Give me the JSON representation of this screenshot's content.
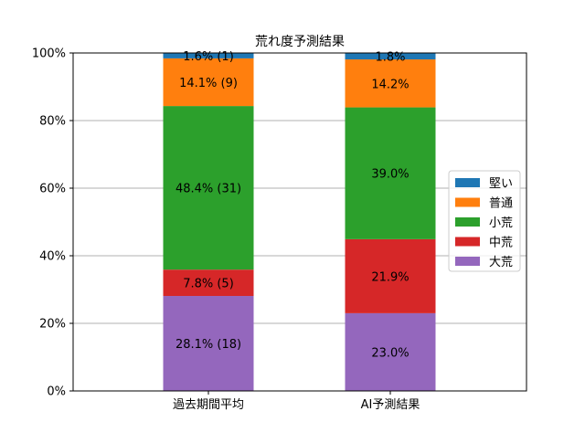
{
  "chart_data": {
    "type": "bar",
    "stacked": true,
    "title": "荒れ度予測結果",
    "xlabel": "",
    "ylabel": "",
    "ylim": [
      0,
      100
    ],
    "grid": true,
    "legend_position": "right",
    "categories": [
      "過去期間平均",
      "AI予測結果"
    ],
    "y_ticks": [
      "0%",
      "20%",
      "40%",
      "60%",
      "80%",
      "100%"
    ],
    "series": [
      {
        "name": "大荒",
        "color": "#9467bd",
        "values": [
          28.1,
          23.0
        ],
        "labels": [
          "28.1% (18)",
          "23.0%"
        ]
      },
      {
        "name": "中荒",
        "color": "#d62728",
        "values": [
          7.8,
          21.9
        ],
        "labels": [
          "7.8% (5)",
          "21.9%"
        ]
      },
      {
        "name": "小荒",
        "color": "#2ca02c",
        "values": [
          48.4,
          39.0
        ],
        "labels": [
          "48.4% (31)",
          "39.0%"
        ]
      },
      {
        "name": "普通",
        "color": "#ff7f0e",
        "values": [
          14.1,
          14.2
        ],
        "labels": [
          "14.1% (9)",
          "14.2%"
        ]
      },
      {
        "name": "堅い",
        "color": "#1f77b4",
        "values": [
          1.6,
          1.8
        ],
        "labels": [
          "1.6% (1)",
          "1.8%"
        ]
      }
    ],
    "legend_order": [
      "堅い",
      "普通",
      "小荒",
      "中荒",
      "大荒"
    ]
  }
}
